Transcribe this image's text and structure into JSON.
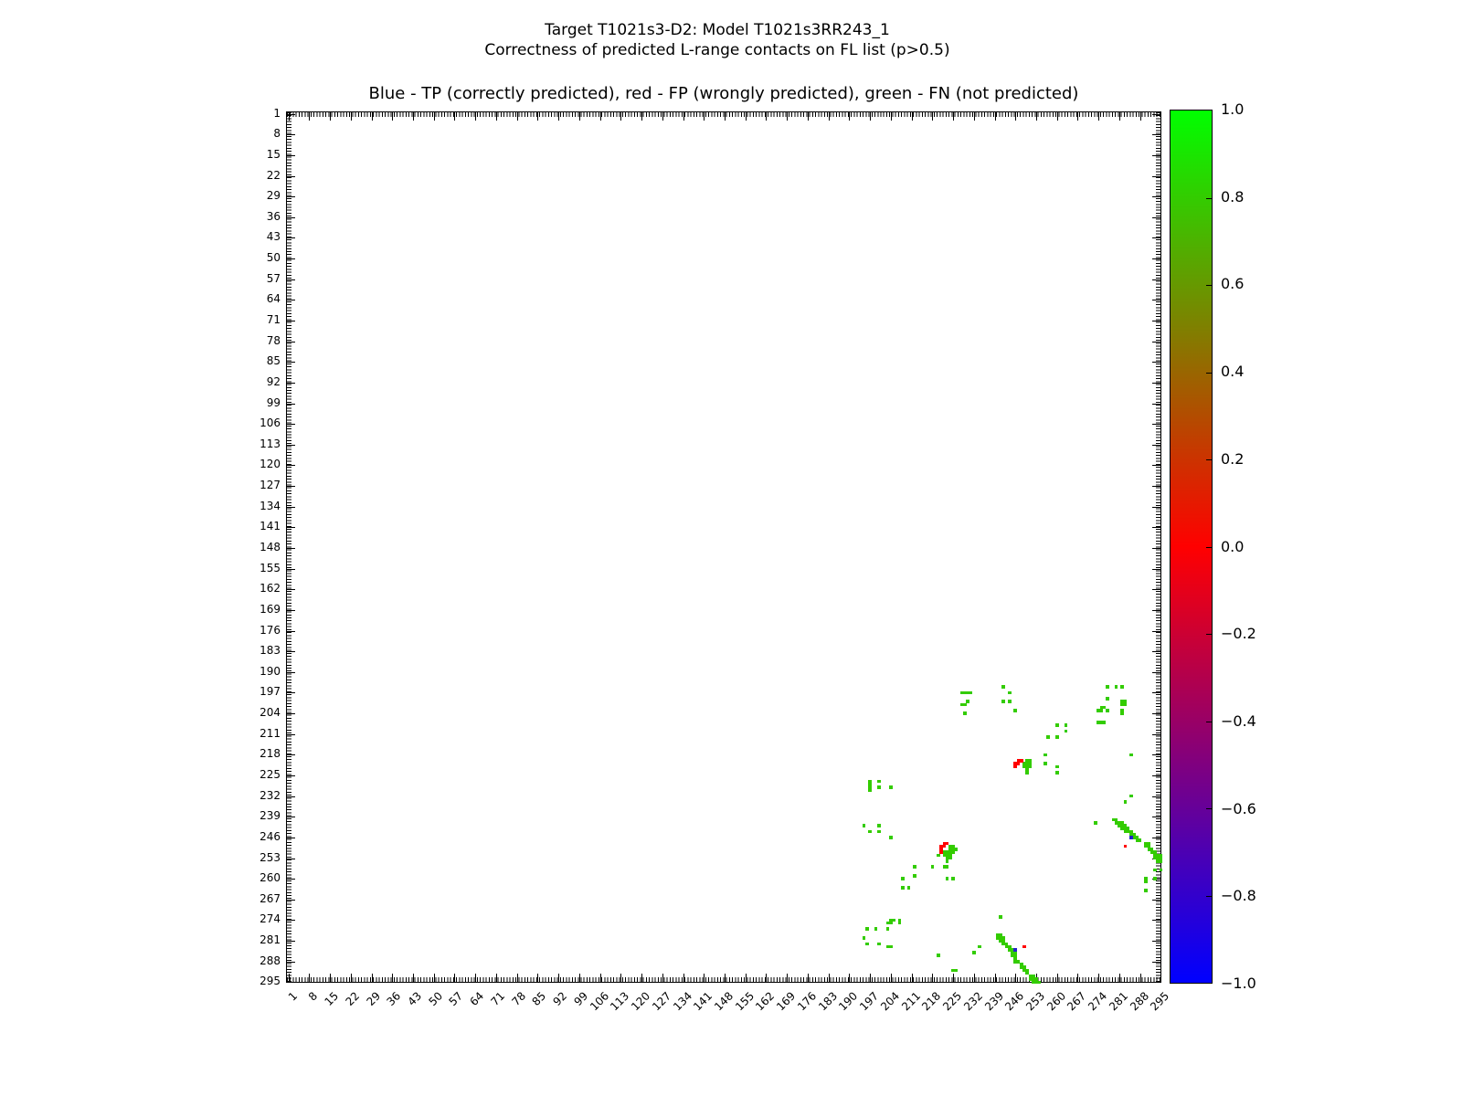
{
  "figure": {
    "title_line1": "Target T1021s3-D2: Model T1021s3RR243_1",
    "title_line2": "Correctness of predicted L-range contacts on FL list (p>0.5)",
    "axes_title": "Blue - TP (correctly predicted), red - FP (wrongly predicted), green - FN (not predicted)"
  },
  "chart_data": {
    "type": "heatmap",
    "title": "Blue - TP (correctly predicted), red - FP (wrongly predicted), green - FN (not predicted)",
    "x_range": [
      1,
      295
    ],
    "y_range": [
      1,
      295
    ],
    "y_inverted": true,
    "tick_step": 7,
    "axis_tick_labels": [
      1,
      8,
      15,
      22,
      29,
      36,
      43,
      50,
      57,
      64,
      71,
      78,
      85,
      92,
      99,
      106,
      113,
      120,
      127,
      134,
      141,
      148,
      155,
      162,
      169,
      176,
      183,
      190,
      197,
      204,
      211,
      218,
      225,
      232,
      239,
      246,
      253,
      260,
      267,
      274,
      281,
      288,
      295
    ],
    "colorbar": {
      "min": -1.0,
      "max": 1.0,
      "tick_labels": [
        "1.0",
        "0.8",
        "0.6",
        "0.4",
        "0.2",
        "0.0",
        "−0.2",
        "−0.4",
        "−0.6",
        "−0.8",
        "−1.0"
      ],
      "top_color": "#00ff00",
      "mid_color": "#ff0000",
      "bottom_color": "#0000ff"
    },
    "legend": {
      "tp_label": "TP (correctly predicted)",
      "tp_color": "#2222cc",
      "fp_label": "FP (wrongly predicted)",
      "fp_color": "#ff0000",
      "fn_label": "FN (not predicted)",
      "fn_color": "#33cc00"
    },
    "points": {
      "fn_green": [
        [
          228,
          197
        ],
        [
          229,
          197
        ],
        [
          230,
          197
        ],
        [
          231,
          197
        ],
        [
          230,
          200
        ],
        [
          228,
          201
        ],
        [
          229,
          201
        ],
        [
          229,
          204
        ],
        [
          242,
          195
        ],
        [
          244,
          197
        ],
        [
          242,
          200
        ],
        [
          244,
          200
        ],
        [
          246,
          203
        ],
        [
          260,
          208
        ],
        [
          263,
          208
        ],
        [
          263,
          210
        ],
        [
          257,
          212
        ],
        [
          260,
          212
        ],
        [
          256,
          218
        ],
        [
          285,
          218
        ],
        [
          256,
          221
        ],
        [
          260,
          222
        ],
        [
          260,
          224
        ],
        [
          250,
          220
        ],
        [
          251,
          220
        ],
        [
          249,
          221
        ],
        [
          250,
          221
        ],
        [
          251,
          221
        ],
        [
          249,
          222
        ],
        [
          250,
          222
        ],
        [
          251,
          222
        ],
        [
          250,
          223
        ],
        [
          250,
          224
        ],
        [
          277,
          195
        ],
        [
          280,
          195
        ],
        [
          282,
          195
        ],
        [
          277,
          199
        ],
        [
          282,
          200
        ],
        [
          283,
          200
        ],
        [
          282,
          201
        ],
        [
          283,
          201
        ],
        [
          275,
          202
        ],
        [
          276,
          202
        ],
        [
          274,
          203
        ],
        [
          275,
          203
        ],
        [
          277,
          203
        ],
        [
          282,
          203
        ],
        [
          282,
          204
        ],
        [
          274,
          207
        ],
        [
          275,
          207
        ],
        [
          276,
          207
        ],
        [
          197,
          227
        ],
        [
          197,
          228
        ],
        [
          197,
          229
        ],
        [
          197,
          230
        ],
        [
          200,
          227
        ],
        [
          200,
          229
        ],
        [
          204,
          229
        ],
        [
          195,
          242
        ],
        [
          200,
          242
        ],
        [
          197,
          244
        ],
        [
          200,
          244
        ],
        [
          204,
          246
        ],
        [
          285,
          232
        ],
        [
          283,
          234
        ],
        [
          273,
          241
        ],
        [
          224,
          249
        ],
        [
          225,
          249
        ],
        [
          224,
          250
        ],
        [
          225,
          250
        ],
        [
          226,
          250
        ],
        [
          222,
          251
        ],
        [
          223,
          251
        ],
        [
          224,
          251
        ],
        [
          225,
          251
        ],
        [
          220,
          252
        ],
        [
          222,
          252
        ],
        [
          223,
          252
        ],
        [
          224,
          252
        ],
        [
          223,
          253
        ],
        [
          224,
          253
        ],
        [
          223,
          254
        ],
        [
          218,
          256
        ],
        [
          222,
          256
        ],
        [
          223,
          256
        ],
        [
          212,
          256
        ],
        [
          212,
          259
        ],
        [
          208,
          260
        ],
        [
          223,
          260
        ],
        [
          225,
          260
        ],
        [
          208,
          263
        ],
        [
          210,
          263
        ],
        [
          204,
          274
        ],
        [
          205,
          274
        ],
        [
          207,
          274
        ],
        [
          203,
          275
        ],
        [
          204,
          275
        ],
        [
          207,
          275
        ],
        [
          196,
          277
        ],
        [
          199,
          277
        ],
        [
          203,
          277
        ],
        [
          195,
          280
        ],
        [
          196,
          282
        ],
        [
          200,
          282
        ],
        [
          203,
          283
        ],
        [
          204,
          283
        ],
        [
          241,
          273
        ],
        [
          234,
          283
        ],
        [
          232,
          285
        ],
        [
          220,
          286
        ],
        [
          225,
          291
        ],
        [
          226,
          291
        ],
        [
          240,
          279
        ],
        [
          241,
          279
        ],
        [
          240,
          280
        ],
        [
          241,
          280
        ],
        [
          242,
          280
        ],
        [
          241,
          281
        ],
        [
          242,
          281
        ],
        [
          242,
          282
        ],
        [
          243,
          282
        ],
        [
          243,
          283
        ],
        [
          244,
          283
        ],
        [
          244,
          284
        ],
        [
          245,
          284
        ],
        [
          245,
          285
        ],
        [
          246,
          285
        ],
        [
          245,
          286
        ],
        [
          246,
          286
        ],
        [
          246,
          287
        ],
        [
          246,
          288
        ],
        [
          247,
          288
        ],
        [
          248,
          289
        ],
        [
          248,
          290
        ],
        [
          249,
          290
        ],
        [
          249,
          291
        ],
        [
          250,
          291
        ],
        [
          250,
          292
        ],
        [
          251,
          293
        ],
        [
          252,
          293
        ],
        [
          251,
          294
        ],
        [
          252,
          294
        ],
        [
          253,
          294
        ],
        [
          252,
          295
        ],
        [
          253,
          295
        ],
        [
          254,
          295
        ],
        [
          279,
          240
        ],
        [
          280,
          240
        ],
        [
          280,
          241
        ],
        [
          281,
          241
        ],
        [
          282,
          241
        ],
        [
          281,
          242
        ],
        [
          282,
          242
        ],
        [
          283,
          242
        ],
        [
          282,
          243
        ],
        [
          283,
          243
        ],
        [
          284,
          243
        ],
        [
          283,
          244
        ],
        [
          284,
          244
        ],
        [
          285,
          244
        ],
        [
          285,
          245
        ],
        [
          286,
          245
        ],
        [
          286,
          246
        ],
        [
          287,
          246
        ],
        [
          287,
          247
        ],
        [
          288,
          247
        ],
        [
          290,
          248
        ],
        [
          291,
          248
        ],
        [
          290,
          249
        ],
        [
          291,
          249
        ],
        [
          291,
          250
        ],
        [
          292,
          250
        ],
        [
          292,
          251
        ],
        [
          293,
          251
        ],
        [
          293,
          252
        ],
        [
          294,
          252
        ],
        [
          295,
          252
        ],
        [
          293,
          253
        ],
        [
          294,
          253
        ],
        [
          295,
          253
        ],
        [
          294,
          254
        ],
        [
          295,
          254
        ],
        [
          293,
          257
        ],
        [
          295,
          257
        ],
        [
          290,
          260
        ],
        [
          293,
          260
        ],
        [
          290,
          261
        ],
        [
          290,
          264
        ]
      ],
      "fp_red": [
        [
          247,
          220
        ],
        [
          248,
          220
        ],
        [
          246,
          221
        ],
        [
          247,
          221
        ],
        [
          246,
          222
        ],
        [
          222,
          248
        ],
        [
          223,
          248
        ],
        [
          221,
          249
        ],
        [
          222,
          249
        ],
        [
          221,
          250
        ],
        [
          221,
          251
        ],
        [
          249,
          283
        ],
        [
          283,
          249
        ]
      ],
      "tp_blue": [
        [
          246,
          284
        ],
        [
          285,
          246
        ]
      ]
    }
  }
}
